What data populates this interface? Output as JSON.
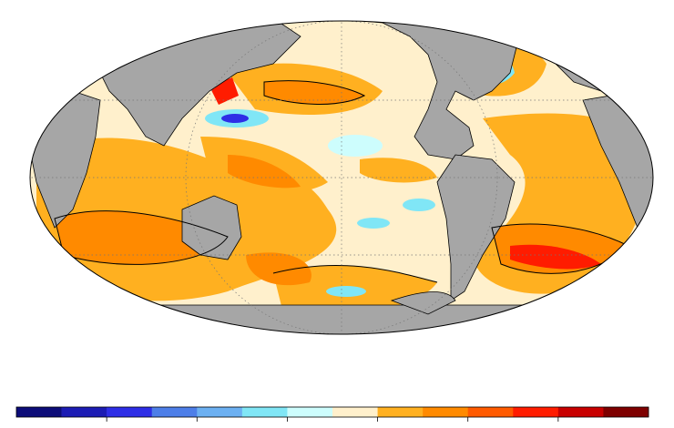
{
  "colorbar": {
    "colors": [
      "#0c0c78",
      "#1c1cb4",
      "#2e2ee6",
      "#4d7ee8",
      "#6cb0f2",
      "#80e6f6",
      "#cdfdfd",
      "#fff0cc",
      "#ffb020",
      "#ff8a00",
      "#ff5a00",
      "#ff1c00",
      "#c80000",
      "#7e0000"
    ]
  }
}
